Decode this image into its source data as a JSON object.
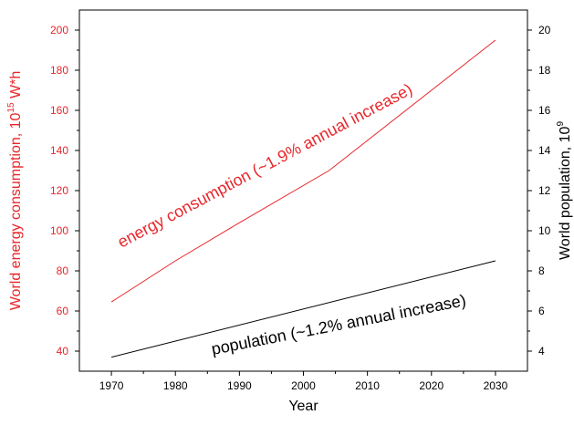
{
  "chart_data": {
    "type": "line",
    "x_axis": {
      "label": "Year",
      "range": [
        1965,
        2035
      ],
      "ticks": [
        1970,
        1980,
        1990,
        2000,
        2010,
        2020,
        2030
      ]
    },
    "y_left": {
      "label": "World energy consumption, 10",
      "label_sup": "15",
      "label_unit": " W*h",
      "range": [
        30,
        210
      ],
      "ticks": [
        40,
        60,
        80,
        100,
        120,
        140,
        160,
        180,
        200
      ],
      "color": "#e8262a"
    },
    "y_right": {
      "label": "World population, 10",
      "label_sup": "9",
      "range": [
        3,
        21
      ],
      "ticks": [
        4,
        6,
        8,
        10,
        12,
        14,
        16,
        18,
        20
      ],
      "color": "#000000"
    },
    "series": [
      {
        "axis": "left",
        "color": "#e8262a",
        "x": [
          1970,
          1980,
          1990,
          2004,
          2030
        ],
        "y": [
          64.5,
          85,
          104,
          130,
          195
        ]
      },
      {
        "axis": "right",
        "color": "#000000",
        "x": [
          1970,
          2030
        ],
        "y": [
          3.7,
          8.5
        ]
      }
    ],
    "annotations": [
      {
        "text": "energy consumption (~1.9% annual increase)",
        "color": "#e8262a"
      },
      {
        "text": "population (~1.2% annual increase)",
        "color": "#000000"
      }
    ],
    "grid": false,
    "legend": "none"
  }
}
